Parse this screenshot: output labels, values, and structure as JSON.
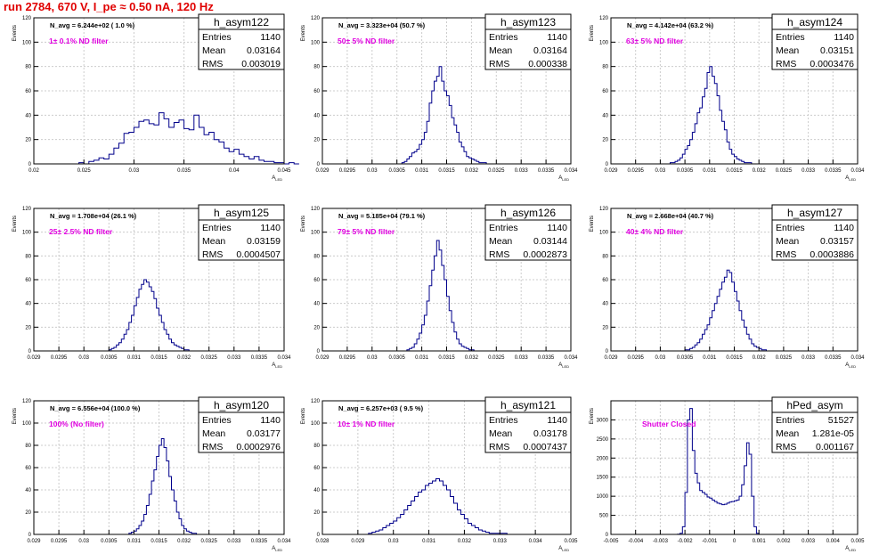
{
  "page": {
    "title": "run 2784,   670 V, I_pe ≈ 0.50 nA, 120 Hz"
  },
  "colors": {
    "histogram_line": "#00008b",
    "filter_text": "#e000e0",
    "title_text": "#e00000",
    "grid": "#cccccc",
    "frame": "#000000"
  },
  "chart_data": [
    {
      "type": "histogram",
      "name": "h_asym122",
      "entries": "1140",
      "mean": "0.03164",
      "rms": "0.003019",
      "navg": "N_avg = 6.244e+02 ( 1.0 %)",
      "filter": "1± 0.1% ND filter",
      "ylabel": "Events",
      "xlabel": "A_LED",
      "xlim": [
        0.02,
        0.045
      ],
      "ylim": [
        0,
        120
      ],
      "xticks": [
        0.02,
        0.025,
        0.03,
        0.035,
        0.04,
        0.045
      ],
      "xticklabels": [
        "0.02",
        "0.025",
        "0.03",
        "0.035",
        "0.04",
        "0.045"
      ],
      "yticks": [
        0,
        20,
        40,
        60,
        80,
        100,
        120
      ],
      "bin_start": 0.0245,
      "bin_width": 0.0005,
      "counts": [
        1,
        0,
        2,
        3,
        5,
        4,
        8,
        13,
        17,
        25,
        26,
        30,
        35,
        36,
        33,
        32,
        42,
        37,
        30,
        34,
        36,
        29,
        28,
        40,
        30,
        24,
        26,
        20,
        18,
        13,
        10,
        12,
        8,
        6,
        4,
        6,
        3,
        2,
        2,
        1,
        1,
        0,
        1,
        0
      ]
    },
    {
      "type": "histogram",
      "name": "h_asym123",
      "entries": "1140",
      "mean": "0.03164",
      "rms": "0.000338",
      "navg": "N_avg = 3.323e+04 (50.7 %)",
      "filter": "50± 5% ND filter",
      "ylabel": "Events",
      "xlabel": "A_LED",
      "xlim": [
        0.029,
        0.034
      ],
      "ylim": [
        0,
        120
      ],
      "xticks": [
        0.029,
        0.0295,
        0.03,
        0.0305,
        0.031,
        0.0315,
        0.032,
        0.0325,
        0.033,
        0.0335,
        0.034
      ],
      "xticklabels": [
        "0.029",
        "0.0295",
        "0.03",
        "0.0305",
        "0.031",
        "0.0315",
        "0.032",
        "0.0325",
        "0.033",
        "0.0335",
        "0.034"
      ],
      "yticks": [
        0,
        20,
        40,
        60,
        80,
        100,
        120
      ],
      "bin_start": 0.0306,
      "bin_width": 5e-05,
      "counts": [
        1,
        2,
        4,
        6,
        9,
        10,
        12,
        16,
        20,
        26,
        35,
        50,
        60,
        68,
        72,
        80,
        68,
        60,
        56,
        48,
        38,
        32,
        26,
        18,
        14,
        10,
        6,
        5,
        4,
        3,
        2,
        1,
        1,
        1
      ]
    },
    {
      "type": "histogram",
      "name": "h_asym124",
      "entries": "1140",
      "mean": "0.03151",
      "rms": "0.0003476",
      "navg": "N_avg = 4.142e+04 (63.2 %)",
      "filter": "63± 5% ND filter",
      "ylabel": "Events",
      "xlabel": "A_LED",
      "xlim": [
        0.029,
        0.034
      ],
      "ylim": [
        0,
        120
      ],
      "xticks": [
        0.029,
        0.0295,
        0.03,
        0.0305,
        0.031,
        0.0315,
        0.032,
        0.0325,
        0.033,
        0.0335,
        0.034
      ],
      "xticklabels": [
        "0.029",
        "0.0295",
        "0.03",
        "0.0305",
        "0.031",
        "0.0315",
        "0.032",
        "0.0325",
        "0.033",
        "0.0335",
        "0.034"
      ],
      "yticks": [
        0,
        20,
        40,
        60,
        80,
        100,
        120
      ],
      "bin_start": 0.0302,
      "bin_width": 5e-05,
      "counts": [
        1,
        1,
        2,
        3,
        5,
        8,
        12,
        15,
        20,
        26,
        33,
        42,
        46,
        55,
        62,
        75,
        80,
        72,
        66,
        56,
        44,
        35,
        28,
        18,
        12,
        8,
        6,
        4,
        3,
        2,
        1,
        1,
        1
      ]
    },
    {
      "type": "histogram",
      "name": "h_asym125",
      "entries": "1140",
      "mean": "0.03159",
      "rms": "0.0004507",
      "navg": "N_avg = 1.708e+04 (26.1 %)",
      "filter": "25± 2.5% ND filter",
      "ylabel": "Events",
      "xlabel": "A_LED",
      "xlim": [
        0.029,
        0.034
      ],
      "ylim": [
        0,
        120
      ],
      "xticks": [
        0.029,
        0.0295,
        0.03,
        0.0305,
        0.031,
        0.0315,
        0.032,
        0.0325,
        0.033,
        0.0335,
        0.034
      ],
      "xticklabels": [
        "0.029",
        "0.0295",
        "0.03",
        "0.0305",
        "0.031",
        "0.0315",
        "0.032",
        "0.0325",
        "0.033",
        "0.0335",
        "0.034"
      ],
      "yticks": [
        0,
        20,
        40,
        60,
        80,
        100,
        120
      ],
      "bin_start": 0.0305,
      "bin_width": 5e-05,
      "counts": [
        1,
        2,
        3,
        5,
        7,
        10,
        14,
        18,
        24,
        30,
        38,
        45,
        52,
        56,
        60,
        58,
        54,
        50,
        44,
        36,
        30,
        24,
        18,
        14,
        10,
        7,
        5,
        4,
        3,
        2,
        1,
        1
      ]
    },
    {
      "type": "histogram",
      "name": "h_asym126",
      "entries": "1140",
      "mean": "0.03144",
      "rms": "0.0002873",
      "navg": "N_avg = 5.185e+04 (79.1 %)",
      "filter": "79± 5% ND filter",
      "ylabel": "Events",
      "xlabel": "A_LED",
      "xlim": [
        0.029,
        0.034
      ],
      "ylim": [
        0,
        120
      ],
      "xticks": [
        0.029,
        0.0295,
        0.03,
        0.0305,
        0.031,
        0.0315,
        0.032,
        0.0325,
        0.033,
        0.0335,
        0.034
      ],
      "xticklabels": [
        "0.029",
        "0.0295",
        "0.03",
        "0.0305",
        "0.031",
        "0.0315",
        "0.032",
        "0.0325",
        "0.033",
        "0.0335",
        "0.034"
      ],
      "yticks": [
        0,
        20,
        40,
        60,
        80,
        100,
        120
      ],
      "bin_start": 0.0307,
      "bin_width": 5e-05,
      "counts": [
        1,
        2,
        3,
        6,
        10,
        15,
        22,
        30,
        42,
        55,
        68,
        80,
        93,
        85,
        72,
        60,
        46,
        34,
        24,
        16,
        10,
        6,
        4,
        3,
        2,
        1,
        1
      ]
    },
    {
      "type": "histogram",
      "name": "h_asym127",
      "entries": "1140",
      "mean": "0.03157",
      "rms": "0.0003886",
      "navg": "N_avg = 2.668e+04 (40.7 %)",
      "filter": "40± 4% ND filter",
      "ylabel": "Events",
      "xlabel": "A_LED",
      "xlim": [
        0.029,
        0.034
      ],
      "ylim": [
        0,
        120
      ],
      "xticks": [
        0.029,
        0.0295,
        0.03,
        0.0305,
        0.031,
        0.0315,
        0.032,
        0.0325,
        0.033,
        0.0335,
        0.034
      ],
      "xticklabels": [
        "0.029",
        "0.0295",
        "0.03",
        "0.0305",
        "0.031",
        "0.0315",
        "0.032",
        "0.0325",
        "0.033",
        "0.0335",
        "0.034"
      ],
      "yticks": [
        0,
        20,
        40,
        60,
        80,
        100,
        120
      ],
      "bin_start": 0.0305,
      "bin_width": 5e-05,
      "counts": [
        1,
        1,
        2,
        3,
        5,
        7,
        10,
        14,
        18,
        22,
        28,
        34,
        40,
        46,
        52,
        58,
        62,
        68,
        66,
        58,
        50,
        42,
        34,
        26,
        20,
        14,
        10,
        6,
        4,
        3,
        2,
        1,
        1
      ]
    },
    {
      "type": "histogram",
      "name": "h_asym120",
      "entries": "1140",
      "mean": "0.03177",
      "rms": "0.0002976",
      "navg": "N_avg = 6.556e+04 (100.0 %)",
      "filter": "100% (No filter)",
      "ylabel": "Events",
      "xlabel": "A_LED",
      "xlim": [
        0.029,
        0.034
      ],
      "ylim": [
        0,
        120
      ],
      "xticks": [
        0.029,
        0.0295,
        0.03,
        0.0305,
        0.031,
        0.0315,
        0.032,
        0.0325,
        0.033,
        0.0335,
        0.034
      ],
      "xticklabels": [
        "0.029",
        "0.0295",
        "0.03",
        "0.0305",
        "0.031",
        "0.0315",
        "0.032",
        "0.0325",
        "0.033",
        "0.0335",
        "0.034"
      ],
      "yticks": [
        0,
        20,
        40,
        60,
        80,
        100,
        120
      ],
      "bin_start": 0.0309,
      "bin_width": 5e-05,
      "counts": [
        1,
        2,
        3,
        5,
        8,
        12,
        18,
        26,
        36,
        48,
        58,
        70,
        80,
        86,
        78,
        66,
        52,
        40,
        30,
        20,
        14,
        8,
        5,
        3,
        2,
        1,
        1
      ]
    },
    {
      "type": "histogram",
      "name": "h_asym121",
      "entries": "1140",
      "mean": "0.03178",
      "rms": "0.0007437",
      "navg": "N_avg = 6.257e+03 ( 9.5 %)",
      "filter": "10± 1% ND filter",
      "ylabel": "Events",
      "xlabel": "A_LED",
      "xlim": [
        0.028,
        0.035
      ],
      "ylim": [
        0,
        120
      ],
      "xticks": [
        0.028,
        0.029,
        0.03,
        0.031,
        0.032,
        0.033,
        0.034,
        0.035
      ],
      "xticklabels": [
        "0.028",
        "0.029",
        "0.03",
        "0.031",
        "0.032",
        "0.033",
        "0.034",
        "0.035"
      ],
      "yticks": [
        0,
        20,
        40,
        60,
        80,
        100,
        120
      ],
      "bin_start": 0.0293,
      "bin_width": 0.0001,
      "counts": [
        1,
        2,
        3,
        4,
        6,
        8,
        10,
        12,
        15,
        18,
        22,
        26,
        30,
        34,
        38,
        40,
        44,
        46,
        48,
        50,
        48,
        44,
        40,
        34,
        28,
        22,
        18,
        14,
        10,
        8,
        6,
        4,
        3,
        2,
        1,
        1,
        1,
        1,
        1
      ]
    },
    {
      "type": "histogram",
      "name": "hPed_asym",
      "entries": "51527",
      "mean": "1.281e-05",
      "rms": "0.001167",
      "navg": "",
      "filter": "Shutter Closed",
      "ylabel": "Events",
      "xlabel": "A_LED",
      "xlim": [
        -0.005,
        0.005
      ],
      "ylim": [
        0,
        3500
      ],
      "xticks": [
        -0.005,
        -0.004,
        -0.003,
        -0.002,
        -0.001,
        0,
        0.001,
        0.002,
        0.003,
        0.004,
        0.005
      ],
      "xticklabels": [
        "-0.005",
        "-0.004",
        "-0.003",
        "-0.002",
        "-0.001",
        "0",
        "0.001",
        "0.002",
        "0.003",
        "0.004",
        "0.005"
      ],
      "yticks": [
        0,
        500,
        1000,
        1500,
        2000,
        2500,
        3000
      ],
      "bin_start": -0.0023,
      "bin_width": 0.0001,
      "counts": [
        5,
        30,
        200,
        1100,
        3000,
        3300,
        2200,
        1600,
        1350,
        1150,
        1100,
        1050,
        980,
        950,
        900,
        860,
        820,
        800,
        780,
        790,
        820,
        850,
        860,
        880,
        900,
        1000,
        1300,
        1800,
        2400,
        2100,
        1000,
        200,
        30
      ]
    }
  ]
}
